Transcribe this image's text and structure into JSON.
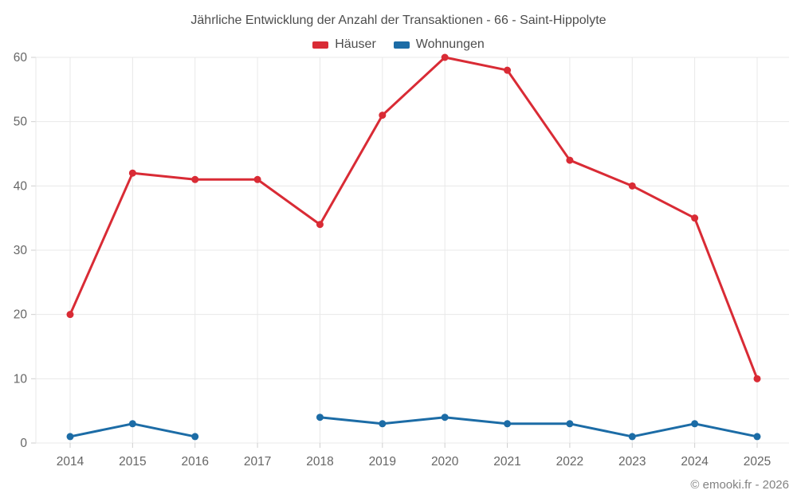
{
  "title": "Jährliche Entwicklung der Anzahl der Transaktionen - 66 - Saint-Hippolyte",
  "copyright": "© emooki.fr - 2026",
  "colors": {
    "haeuser": "#d92b35",
    "wohnungen": "#1c6ca6",
    "grid": "#e8e8e8",
    "tick": "#cfcfcf",
    "tick_label": "#666666",
    "title_text": "#4d4d4d",
    "copyright_text": "#828282"
  },
  "legend": [
    {
      "label": "Häuser",
      "color": "#d92b35"
    },
    {
      "label": "Wohnungen",
      "color": "#1c6ca6"
    }
  ],
  "chart_data": {
    "type": "line",
    "title": "Jährliche Entwicklung der Anzahl der Transaktionen - 66 - Saint-Hippolyte",
    "xlabel": "",
    "ylabel": "",
    "categories": [
      "2014",
      "2015",
      "2016",
      "2017",
      "2018",
      "2019",
      "2020",
      "2021",
      "2022",
      "2023",
      "2024",
      "2025"
    ],
    "series": [
      {
        "name": "Häuser",
        "color": "#d92b35",
        "values": [
          20,
          42,
          41,
          41,
          34,
          51,
          60,
          58,
          44,
          40,
          35,
          10
        ]
      },
      {
        "name": "Wohnungen",
        "color": "#1c6ca6",
        "values": [
          1,
          3,
          1,
          null,
          4,
          3,
          4,
          3,
          3,
          1,
          3,
          1
        ]
      }
    ],
    "ylim": [
      0,
      60
    ],
    "yticks": [
      0,
      10,
      20,
      30,
      40,
      50,
      60
    ],
    "grid": true,
    "legend_position": "top"
  }
}
